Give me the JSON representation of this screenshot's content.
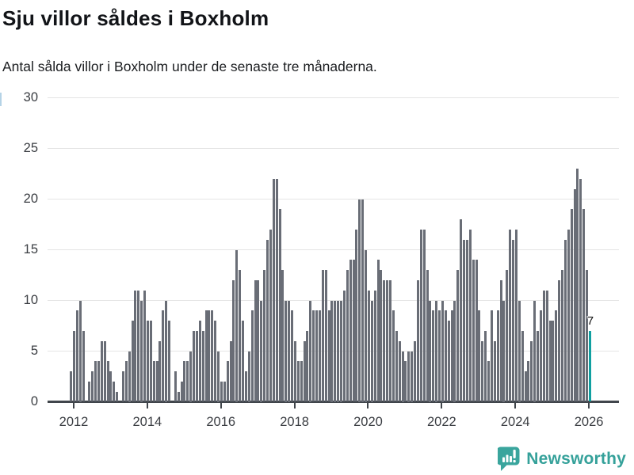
{
  "header": {
    "title": "Sju villor såldes i Boxholm",
    "subtitle": "Antal sålda villor i Boxholm under de senaste tre månaderna."
  },
  "chart_data": {
    "type": "bar",
    "title": "Sju villor såldes i Boxholm",
    "subtitle": "Antal sålda villor i Boxholm under de senaste tre månaderna.",
    "ylabel": "",
    "xlabel": "",
    "ylim": [
      0,
      30
    ],
    "y_ticks": [
      0,
      5,
      10,
      15,
      20,
      25,
      30
    ],
    "x_tick_labels": [
      "2012",
      "2014",
      "2016",
      "2018",
      "2020",
      "2022",
      "2024",
      "2026"
    ],
    "grid": true,
    "legend_position": "none",
    "bar_color": "#696d76",
    "highlight_color": "#10a0a1",
    "values": [
      3,
      7,
      9,
      10,
      7,
      0,
      2,
      3,
      4,
      4,
      6,
      6,
      4,
      3,
      2,
      1,
      0,
      3,
      4,
      5,
      8,
      11,
      11,
      10,
      11,
      8,
      8,
      4,
      4,
      6,
      9,
      10,
      8,
      0,
      3,
      1,
      2,
      4,
      4,
      5,
      7,
      7,
      8,
      7,
      9,
      9,
      9,
      8,
      5,
      2,
      2,
      4,
      6,
      12,
      15,
      13,
      8,
      3,
      5,
      9,
      12,
      12,
      10,
      13,
      16,
      17,
      22,
      22,
      19,
      13,
      10,
      10,
      9,
      6,
      4,
      4,
      6,
      7,
      10,
      9,
      9,
      9,
      13,
      13,
      9,
      10,
      10,
      10,
      10,
      11,
      13,
      14,
      14,
      17,
      20,
      20,
      15,
      11,
      10,
      11,
      14,
      13,
      12,
      12,
      12,
      9,
      7,
      6,
      5,
      4,
      5,
      5,
      6,
      12,
      17,
      17,
      13,
      10,
      9,
      10,
      9,
      10,
      9,
      8,
      9,
      10,
      13,
      18,
      16,
      16,
      17,
      14,
      14,
      9,
      6,
      7,
      4,
      9,
      6,
      9,
      12,
      10,
      13,
      17,
      16,
      17,
      10,
      7,
      3,
      4,
      6,
      10,
      7,
      9,
      11,
      11,
      8,
      8,
      9,
      12,
      13,
      16,
      17,
      19,
      21,
      23,
      22,
      19,
      13,
      7
    ],
    "highlight_last": true,
    "last_value_label": "7"
  },
  "footer": {
    "brand": "Newsworthy",
    "brand_color": "#35a19a"
  }
}
